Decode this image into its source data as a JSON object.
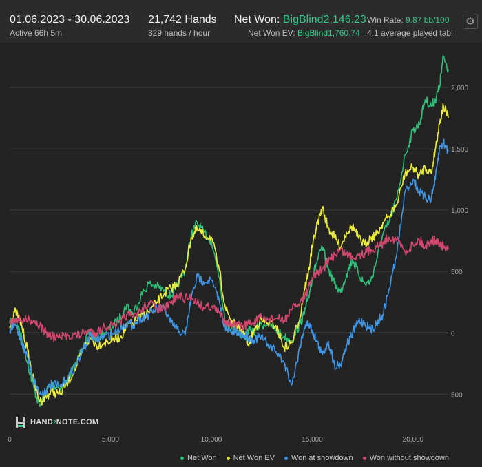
{
  "header": {
    "date_range": "01.06.2023 - 30.06.2023",
    "active": "Active 66h 5m",
    "hands": "21,742 Hands",
    "hands_per_hour": "329 hands / hour",
    "net_won_label": "Net Won: ",
    "net_won_value": "BigBlind2,146.23",
    "net_won_ev_label": "Net Won  EV: ",
    "net_won_ev_value": "BigBlind1,760.74",
    "win_rate_label": "Win Rate: ",
    "win_rate_value": "9.87 bb/100",
    "tables": "4.1 average played tabl"
  },
  "settings_icon": "gear-icon",
  "logo": {
    "pre": "HAND",
    "mid": "2",
    "post": "NOTE.COM"
  },
  "chart_data": {
    "type": "line",
    "xlim": [
      0,
      21742
    ],
    "ylim": [
      -790,
      2320
    ],
    "x_ticks": [
      0,
      5000,
      10000,
      15000,
      20000
    ],
    "x_tick_labels": [
      "0",
      "5,000",
      "10,000",
      "15,000",
      "20,000"
    ],
    "y_ticks": [
      2000,
      1500,
      1000,
      500,
      0,
      -500
    ],
    "y_tick_labels": [
      "2,000",
      "1,500",
      "1,000",
      "500",
      "0",
      "500"
    ],
    "grid": true,
    "legend_position": "bottom-right",
    "series": [
      {
        "name": "Net Won",
        "color": "#2fbf78",
        "x": [
          0,
          300,
          600,
          900,
          1200,
          1500,
          1800,
          2100,
          2500,
          2900,
          3300,
          3700,
          4000,
          4300,
          4700,
          5100,
          5500,
          5800,
          6100,
          6500,
          6900,
          7300,
          7700,
          8000,
          8300,
          8700,
          9000,
          9300,
          9600,
          10000,
          10400,
          10700,
          11000,
          11300,
          11600,
          11800,
          12100,
          12400,
          12800,
          13200,
          13600,
          14000,
          14400,
          14600,
          14800,
          15000,
          15200,
          15500,
          15800,
          16100,
          16400,
          16700,
          17000,
          17300,
          17600,
          17900,
          18200,
          18500,
          18800,
          19200,
          19600,
          20000,
          20300,
          20600,
          20900,
          21100,
          21300,
          21500,
          21742
        ],
        "y": [
          80,
          120,
          -50,
          -250,
          -450,
          -600,
          -480,
          -420,
          -450,
          -380,
          -250,
          -80,
          10,
          -50,
          0,
          50,
          130,
          230,
          150,
          300,
          400,
          380,
          340,
          300,
          380,
          520,
          800,
          900,
          820,
          750,
          450,
          80,
          40,
          20,
          -40,
          20,
          10,
          60,
          80,
          20,
          -30,
          -60,
          80,
          150,
          280,
          450,
          560,
          700,
          520,
          400,
          330,
          480,
          600,
          480,
          400,
          420,
          600,
          800,
          900,
          1100,
          1450,
          1650,
          1700,
          1900,
          1850,
          1900,
          2000,
          2250,
          2150
        ]
      },
      {
        "name": "Net Won  EV",
        "color": "#ecec3a",
        "x": [
          0,
          300,
          600,
          900,
          1200,
          1500,
          1800,
          2100,
          2500,
          2900,
          3300,
          3700,
          4000,
          4300,
          4700,
          5100,
          5500,
          5800,
          6100,
          6500,
          6900,
          7300,
          7700,
          8000,
          8300,
          8700,
          9000,
          9300,
          9600,
          10000,
          10400,
          10700,
          11000,
          11300,
          11600,
          11800,
          12100,
          12400,
          12800,
          13200,
          13600,
          14000,
          14400,
          14600,
          14800,
          15000,
          15200,
          15500,
          15800,
          16100,
          16400,
          16700,
          17000,
          17300,
          17600,
          17900,
          18200,
          18500,
          18800,
          19200,
          19600,
          20000,
          20300,
          20600,
          20900,
          21100,
          21300,
          21500,
          21742
        ],
        "y": [
          40,
          180,
          60,
          -150,
          -400,
          -560,
          -520,
          -480,
          -500,
          -400,
          -280,
          -120,
          -40,
          -100,
          -80,
          -60,
          -30,
          50,
          80,
          130,
          170,
          250,
          330,
          360,
          400,
          520,
          780,
          840,
          800,
          780,
          500,
          200,
          100,
          30,
          20,
          -100,
          10,
          100,
          80,
          60,
          -120,
          -80,
          140,
          350,
          480,
          700,
          850,
          1020,
          850,
          780,
          700,
          820,
          870,
          770,
          720,
          780,
          800,
          900,
          950,
          1050,
          1300,
          1350,
          1280,
          1350,
          1300,
          1500,
          1700,
          1850,
          1750
        ]
      },
      {
        "name": "Won at showdown",
        "color": "#3f95e6",
        "x": [
          0,
          300,
          600,
          900,
          1200,
          1500,
          1800,
          2100,
          2500,
          2900,
          3300,
          3700,
          4000,
          4300,
          4700,
          5100,
          5500,
          5800,
          6100,
          6500,
          6900,
          7300,
          7700,
          8000,
          8300,
          8700,
          9000,
          9300,
          9600,
          10000,
          10400,
          10700,
          11000,
          11300,
          11600,
          11800,
          12100,
          12400,
          12800,
          13200,
          13600,
          14000,
          14400,
          14600,
          14800,
          15000,
          15200,
          15500,
          15800,
          16100,
          16400,
          16700,
          17000,
          17300,
          17600,
          17900,
          18200,
          18500,
          18800,
          19200,
          19600,
          20000,
          20300,
          20600,
          20900,
          21100,
          21300,
          21500,
          21742
        ],
        "y": [
          20,
          60,
          -80,
          -200,
          -380,
          -500,
          -470,
          -420,
          -440,
          -360,
          -260,
          -120,
          -20,
          -50,
          -30,
          -10,
          40,
          80,
          60,
          120,
          150,
          200,
          180,
          80,
          30,
          -20,
          280,
          460,
          420,
          430,
          250,
          20,
          10,
          0,
          -20,
          -30,
          -60,
          -30,
          -90,
          -150,
          -240,
          -420,
          -100,
          40,
          80,
          20,
          -60,
          -180,
          -70,
          -260,
          -260,
          -100,
          0,
          100,
          80,
          20,
          80,
          150,
          350,
          650,
          1150,
          1250,
          1150,
          1100,
          1100,
          1250,
          1500,
          1550,
          1480
        ]
      },
      {
        "name": "Won without showdown",
        "color": "#d2476e",
        "x": [
          0,
          300,
          600,
          900,
          1200,
          1500,
          1800,
          2100,
          2500,
          2900,
          3300,
          3700,
          4000,
          4300,
          4700,
          5100,
          5500,
          5800,
          6100,
          6500,
          6900,
          7300,
          7700,
          8000,
          8300,
          8700,
          9000,
          9300,
          9600,
          10000,
          10400,
          10700,
          11000,
          11300,
          11600,
          11800,
          12100,
          12400,
          12800,
          13200,
          13600,
          14000,
          14400,
          14600,
          14800,
          15000,
          15200,
          15500,
          15800,
          16100,
          16400,
          16700,
          17000,
          17300,
          17600,
          17900,
          18200,
          18500,
          18800,
          19200,
          19600,
          20000,
          20300,
          20600,
          20900,
          21100,
          21300,
          21500,
          21742
        ],
        "y": [
          80,
          120,
          100,
          110,
          100,
          60,
          0,
          -30,
          -40,
          -20,
          -20,
          0,
          20,
          0,
          50,
          60,
          80,
          150,
          130,
          180,
          250,
          200,
          200,
          240,
          300,
          280,
          290,
          250,
          210,
          220,
          160,
          100,
          70,
          60,
          50,
          80,
          80,
          120,
          110,
          120,
          100,
          190,
          250,
          300,
          350,
          450,
          480,
          520,
          580,
          640,
          680,
          640,
          620,
          640,
          650,
          680,
          700,
          730,
          780,
          760,
          660,
          720,
          760,
          700,
          760,
          750,
          730,
          700,
          680
        ]
      }
    ]
  }
}
